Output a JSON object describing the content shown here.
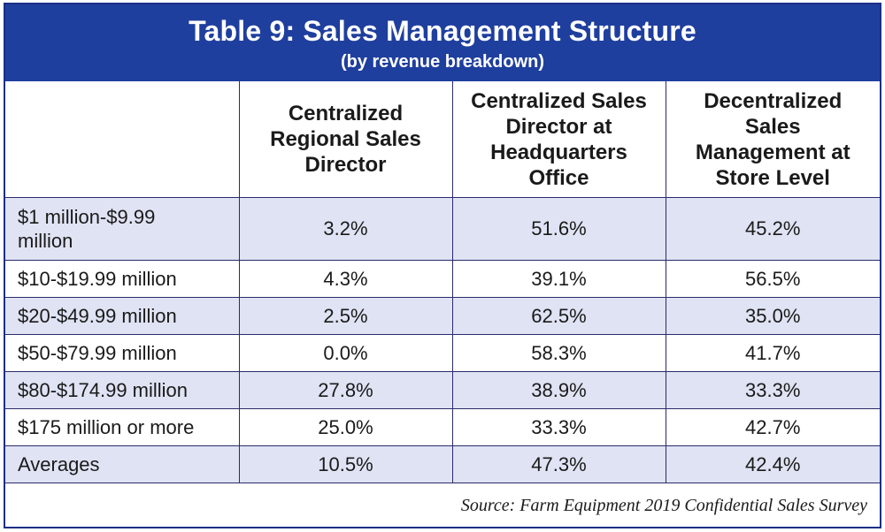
{
  "title": "Table 9: Sales Management Structure",
  "subtitle": "(by revenue breakdown)",
  "headers": [
    "",
    "Centralized Regional Sales Director",
    "Centralized Sales Director at Headquarters Office",
    "Decentralized Sales Management at Store Level"
  ],
  "rows": [
    {
      "label": "$1 million-$9.99 million",
      "values": [
        "3.2%",
        "51.6%",
        "45.2%"
      ]
    },
    {
      "label": "$10-$19.99 million",
      "values": [
        "4.3%",
        "39.1%",
        "56.5%"
      ]
    },
    {
      "label": "$20-$49.99 million",
      "values": [
        "2.5%",
        "62.5%",
        "35.0%"
      ]
    },
    {
      "label": "$50-$79.99 million",
      "values": [
        "0.0%",
        "58.3%",
        "41.7%"
      ]
    },
    {
      "label": "$80-$174.99 million",
      "values": [
        "27.8%",
        "38.9%",
        "33.3%"
      ]
    },
    {
      "label": "$175 million or more",
      "values": [
        "25.0%",
        "33.3%",
        "42.7%"
      ]
    },
    {
      "label": "Averages",
      "values": [
        "10.5%",
        "47.3%",
        "42.4%"
      ]
    }
  ],
  "source": "Source: Farm Equipment 2019 Confidential Sales Survey",
  "colors": {
    "header_band": "#1f3f9e",
    "row_shade": "#dfe3f3",
    "border": "#2b2b6b"
  }
}
